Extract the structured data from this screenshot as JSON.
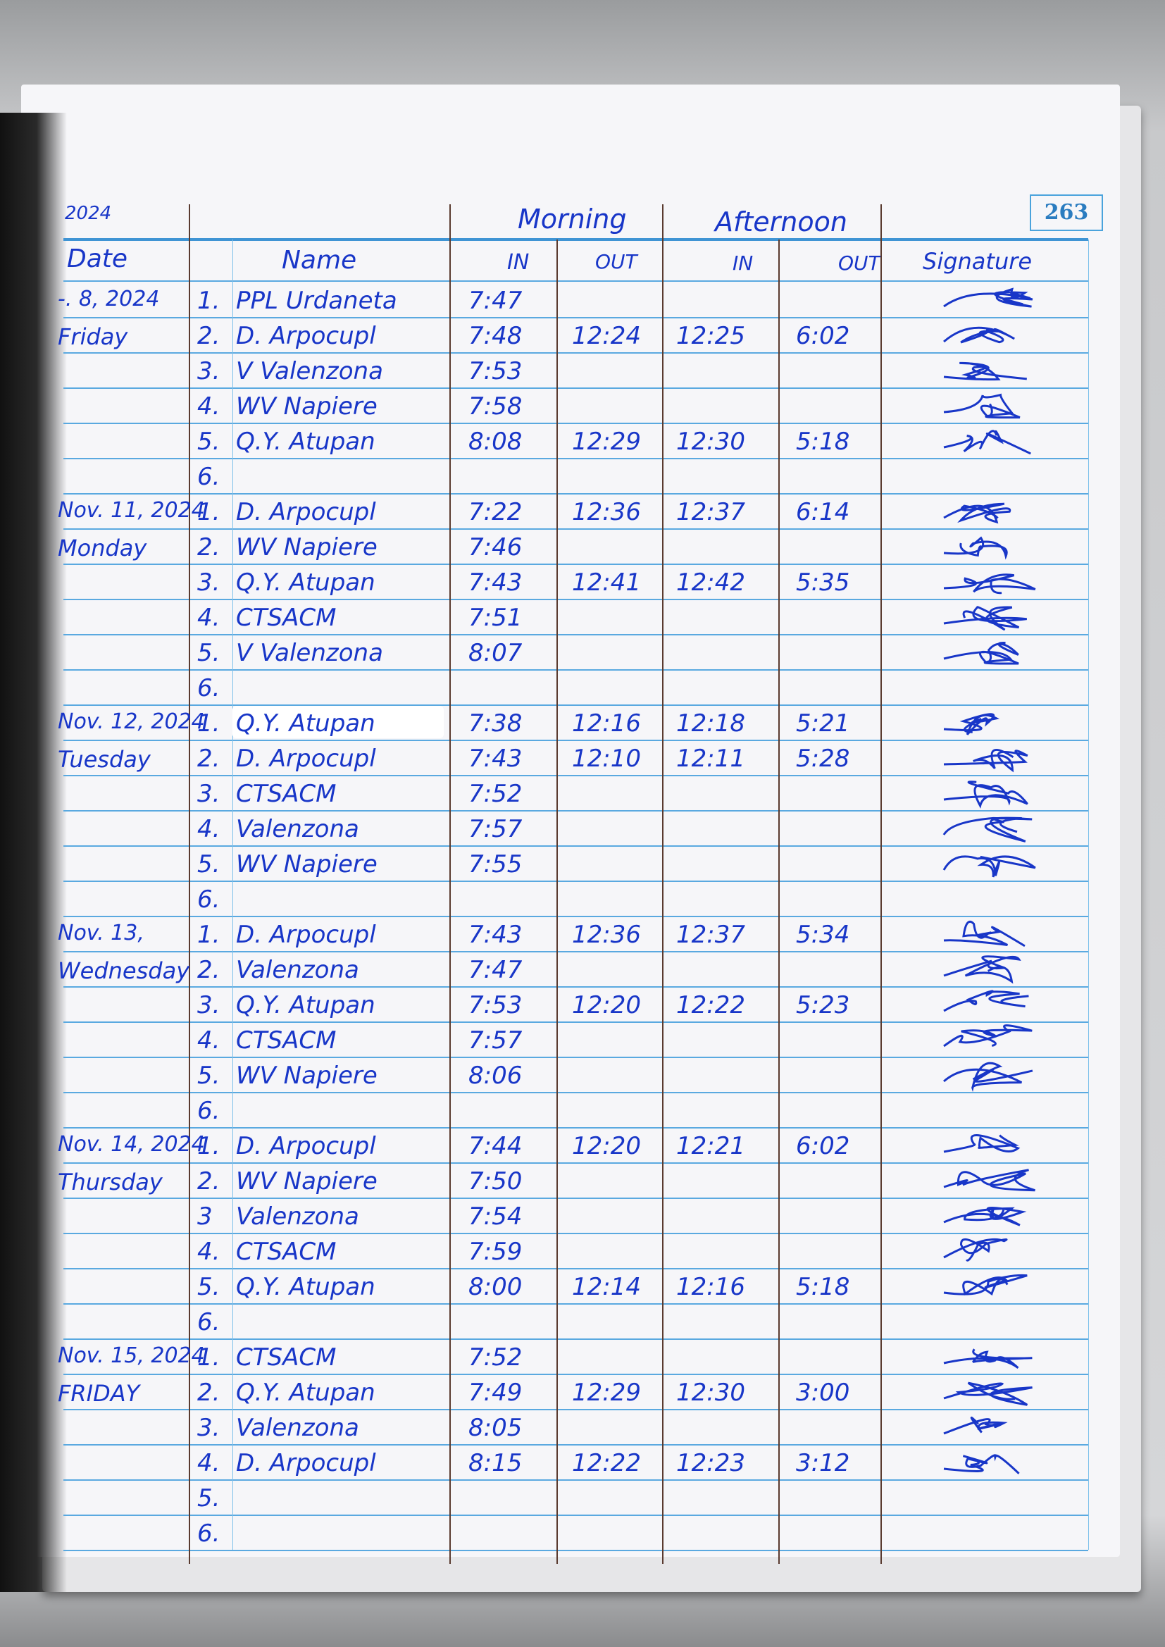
{
  "header": {
    "year_fragment": "2024",
    "page_number": "263",
    "morning": "Morning",
    "afternoon": "Afternoon",
    "columns": {
      "date": "Date",
      "name": "Name",
      "morning_in": "IN",
      "morning_out": "OUT",
      "afternoon_in": "IN",
      "afternoon_out": "OUT",
      "signature": "Signature"
    }
  },
  "ink_color": "#1836c8",
  "days": [
    {
      "date": "-. 8, 2024",
      "weekday": "Friday",
      "rows": [
        {
          "no": "1.",
          "name": "PPL Urdaneta",
          "am_in": "7:47",
          "am_out": "",
          "pm_in": "",
          "pm_out": ""
        },
        {
          "no": "2.",
          "name": "D. Arpocupl",
          "am_in": "7:48",
          "am_out": "12:24",
          "pm_in": "12:25",
          "pm_out": "6:02"
        },
        {
          "no": "3.",
          "name": "V Valenzona",
          "am_in": "7:53",
          "am_out": "",
          "pm_in": "",
          "pm_out": ""
        },
        {
          "no": "4.",
          "name": "WV Napiere",
          "am_in": "7:58",
          "am_out": "",
          "pm_in": "",
          "pm_out": ""
        },
        {
          "no": "5.",
          "name": "Q.Y. Atupan",
          "am_in": "8:08",
          "am_out": "12:29",
          "pm_in": "12:30",
          "pm_out": "5:18"
        },
        {
          "no": "6.",
          "name": "",
          "am_in": "",
          "am_out": "",
          "pm_in": "",
          "pm_out": ""
        }
      ]
    },
    {
      "date": "Nov. 11, 2024",
      "weekday": "Monday",
      "rows": [
        {
          "no": "1.",
          "name": "D. Arpocupl",
          "am_in": "7:22",
          "am_out": "12:36",
          "pm_in": "12:37",
          "pm_out": "6:14"
        },
        {
          "no": "2.",
          "name": "WV Napiere",
          "am_in": "7:46",
          "am_out": "",
          "pm_in": "",
          "pm_out": ""
        },
        {
          "no": "3.",
          "name": "Q.Y. Atupan",
          "am_in": "7:43",
          "am_out": "12:41",
          "pm_in": "12:42",
          "pm_out": "5:35"
        },
        {
          "no": "4.",
          "name": "CTSACM",
          "am_in": "7:51",
          "am_out": "",
          "pm_in": "",
          "pm_out": ""
        },
        {
          "no": "5.",
          "name": "V Valenzona",
          "am_in": "8:07",
          "am_out": "",
          "pm_in": "",
          "pm_out": ""
        },
        {
          "no": "6.",
          "name": "",
          "am_in": "",
          "am_out": "",
          "pm_in": "",
          "pm_out": ""
        }
      ]
    },
    {
      "date": "Nov. 12, 2024",
      "weekday": "Tuesday",
      "rows": [
        {
          "no": "1.",
          "name": "Q.Y. Atupan",
          "am_in": "7:38",
          "am_out": "12:16",
          "pm_in": "12:18",
          "pm_out": "5:21",
          "whiteout": true
        },
        {
          "no": "2.",
          "name": "D. Arpocupl",
          "am_in": "7:43",
          "am_out": "12:10",
          "pm_in": "12:11",
          "pm_out": "5:28"
        },
        {
          "no": "3.",
          "name": "CTSACM",
          "am_in": "7:52",
          "am_out": "",
          "pm_in": "",
          "pm_out": ""
        },
        {
          "no": "4.",
          "name": "Valenzona",
          "am_in": "7:57",
          "am_out": "",
          "pm_in": "",
          "pm_out": ""
        },
        {
          "no": "5.",
          "name": "WV Napiere",
          "am_in": "7:55",
          "am_out": "",
          "pm_in": "",
          "pm_out": ""
        },
        {
          "no": "6.",
          "name": "",
          "am_in": "",
          "am_out": "",
          "pm_in": "",
          "pm_out": ""
        }
      ]
    },
    {
      "date": "Nov. 13,",
      "weekday": "Wednesday",
      "rows": [
        {
          "no": "1.",
          "name": "D. Arpocupl",
          "am_in": "7:43",
          "am_out": "12:36",
          "pm_in": "12:37",
          "pm_out": "5:34"
        },
        {
          "no": "2.",
          "name": "Valenzona",
          "am_in": "7:47",
          "am_out": "",
          "pm_in": "",
          "pm_out": ""
        },
        {
          "no": "3.",
          "name": "Q.Y. Atupan",
          "am_in": "7:53",
          "am_out": "12:20",
          "pm_in": "12:22",
          "pm_out": "5:23"
        },
        {
          "no": "4.",
          "name": "CTSACM",
          "am_in": "7:57",
          "am_out": "",
          "pm_in": "",
          "pm_out": ""
        },
        {
          "no": "5.",
          "name": "WV Napiere",
          "am_in": "8:06",
          "am_out": "",
          "pm_in": "",
          "pm_out": ""
        },
        {
          "no": "6.",
          "name": "",
          "am_in": "",
          "am_out": "",
          "pm_in": "",
          "pm_out": ""
        }
      ]
    },
    {
      "date": "Nov. 14, 2024",
      "weekday": "Thursday",
      "rows": [
        {
          "no": "1.",
          "name": "D. Arpocupl",
          "am_in": "7:44",
          "am_out": "12:20",
          "pm_in": "12:21",
          "pm_out": "6:02"
        },
        {
          "no": "2.",
          "name": "WV Napiere",
          "am_in": "7:50",
          "am_out": "",
          "pm_in": "",
          "pm_out": ""
        },
        {
          "no": "3",
          "name": "Valenzona",
          "am_in": "7:54",
          "am_out": "",
          "pm_in": "",
          "pm_out": ""
        },
        {
          "no": "4.",
          "name": "CTSACM",
          "am_in": "7:59",
          "am_out": "",
          "pm_in": "",
          "pm_out": ""
        },
        {
          "no": "5.",
          "name": "Q.Y. Atupan",
          "am_in": "8:00",
          "am_out": "12:14",
          "pm_in": "12:16",
          "pm_out": "5:18"
        },
        {
          "no": "6.",
          "name": "",
          "am_in": "",
          "am_out": "",
          "pm_in": "",
          "pm_out": ""
        }
      ]
    },
    {
      "date": "Nov. 15, 2024",
      "weekday": "FRIDAY",
      "rows": [
        {
          "no": "1.",
          "name": "CTSACM",
          "am_in": "7:52",
          "am_out": "",
          "pm_in": "",
          "pm_out": ""
        },
        {
          "no": "2.",
          "name": "Q.Y. Atupan",
          "am_in": "7:49",
          "am_out": "12:29",
          "pm_in": "12:30",
          "pm_out": "3:00"
        },
        {
          "no": "3.",
          "name": "Valenzona",
          "am_in": "8:05",
          "am_out": "",
          "pm_in": "",
          "pm_out": ""
        },
        {
          "no": "4.",
          "name": "D. Arpocupl",
          "am_in": "8:15",
          "am_out": "12:22",
          "pm_in": "12:23",
          "pm_out": "3:12"
        },
        {
          "no": "5.",
          "name": "",
          "am_in": "",
          "am_out": "",
          "pm_in": "",
          "pm_out": ""
        },
        {
          "no": "6.",
          "name": "",
          "am_in": "",
          "am_out": "",
          "pm_in": "",
          "pm_out": ""
        }
      ]
    }
  ]
}
